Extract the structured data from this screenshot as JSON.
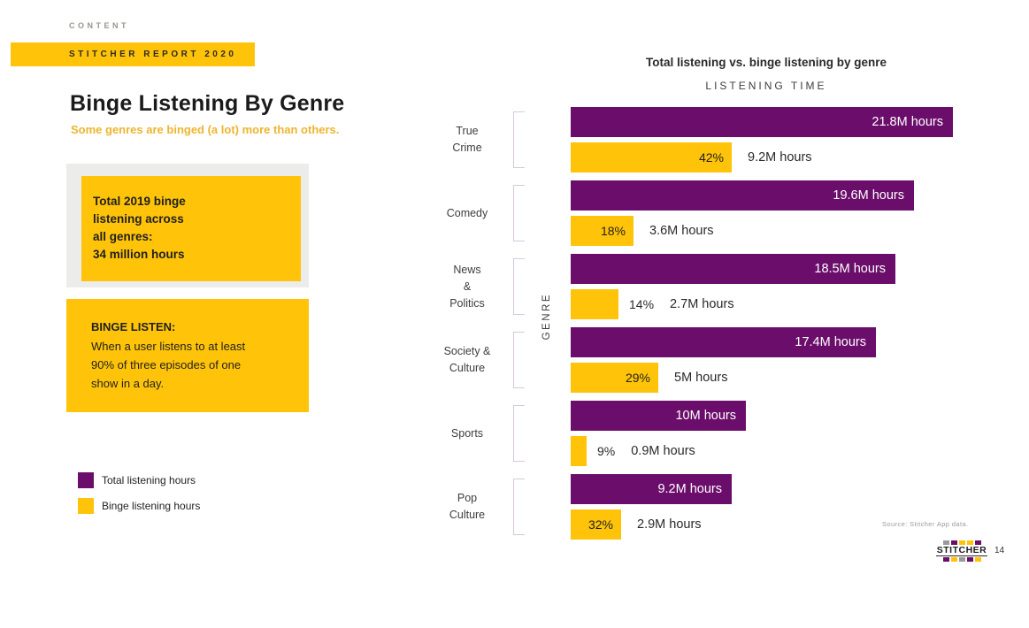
{
  "header": {
    "eyebrow": "CONTENT",
    "banner": "STITCHER REPORT 2020",
    "title": "Binge Listening By Genre",
    "subtitle": "Some genres are binged (a lot) more than others."
  },
  "callouts": {
    "total": {
      "text": "Total 2019 binge\nlistening across\nall genres:\n34 million hours"
    },
    "definition": {
      "title": "BINGE LISTEN:",
      "body": "When a user listens to at least\n90% of three episodes of one\nshow in a day."
    }
  },
  "legend": {
    "items": [
      {
        "label": "Total listening hours",
        "color": "#6b0e6b"
      },
      {
        "label": "Binge listening hours",
        "color": "#ffc40a"
      }
    ]
  },
  "chart_data": {
    "type": "bar",
    "orientation": "horizontal",
    "title": "Total listening vs. binge listening by genre",
    "subtitle": "LISTENING TIME",
    "y_axis_label": "GENRE",
    "unit": "M hours",
    "xlim": [
      0,
      21.8
    ],
    "grid": false,
    "series_names": [
      "Total listening hours",
      "Binge listening hours"
    ],
    "rows": [
      {
        "genre": "True\nCrime",
        "total": 21.8,
        "total_label": "21.8M hours",
        "binge": 9.2,
        "binge_pct": "42%",
        "binge_label": "9.2M hours",
        "pct_position": "inside"
      },
      {
        "genre": "Comedy",
        "total": 19.6,
        "total_label": "19.6M hours",
        "binge": 3.6,
        "binge_pct": "18%",
        "binge_label": "3.6M hours",
        "pct_position": "inside"
      },
      {
        "genre": "News\n&\nPolitics",
        "total": 18.5,
        "total_label": "18.5M hours",
        "binge": 2.7,
        "binge_pct": "14%",
        "binge_label": "2.7M hours",
        "pct_position": "outside"
      },
      {
        "genre": "Society &\nCulture",
        "total": 17.4,
        "total_label": "17.4M hours",
        "binge": 5.0,
        "binge_pct": "29%",
        "binge_label": "5M hours",
        "pct_position": "inside"
      },
      {
        "genre": "Sports",
        "total": 10.0,
        "total_label": "10M hours",
        "binge": 0.9,
        "binge_pct": "9%",
        "binge_label": "0.9M hours",
        "pct_position": "outside"
      },
      {
        "genre": "Pop\nCulture",
        "total": 9.2,
        "total_label": "9.2M hours",
        "binge": 2.9,
        "binge_pct": "32%",
        "binge_label": "2.9M hours",
        "pct_position": "inside"
      }
    ]
  },
  "footer": {
    "source": "Source: Stitcher App data.",
    "logo_text": "STITCHER",
    "page_number": "14",
    "logo_squares_top": [
      "#9a9a9a",
      "#6b0e6b",
      "#ffc40a",
      "#ffc40a",
      "#6b0e6b"
    ],
    "logo_squares_bottom": [
      "#6b0e6b",
      "#ffc40a",
      "#9a9a9a",
      "#6b0e6b",
      "#ffc40a"
    ]
  },
  "colors": {
    "purple": "#6b0e6b",
    "yellow": "#ffc40a",
    "gray_box": "#ececeb",
    "bracket": "#d6c8dc"
  }
}
